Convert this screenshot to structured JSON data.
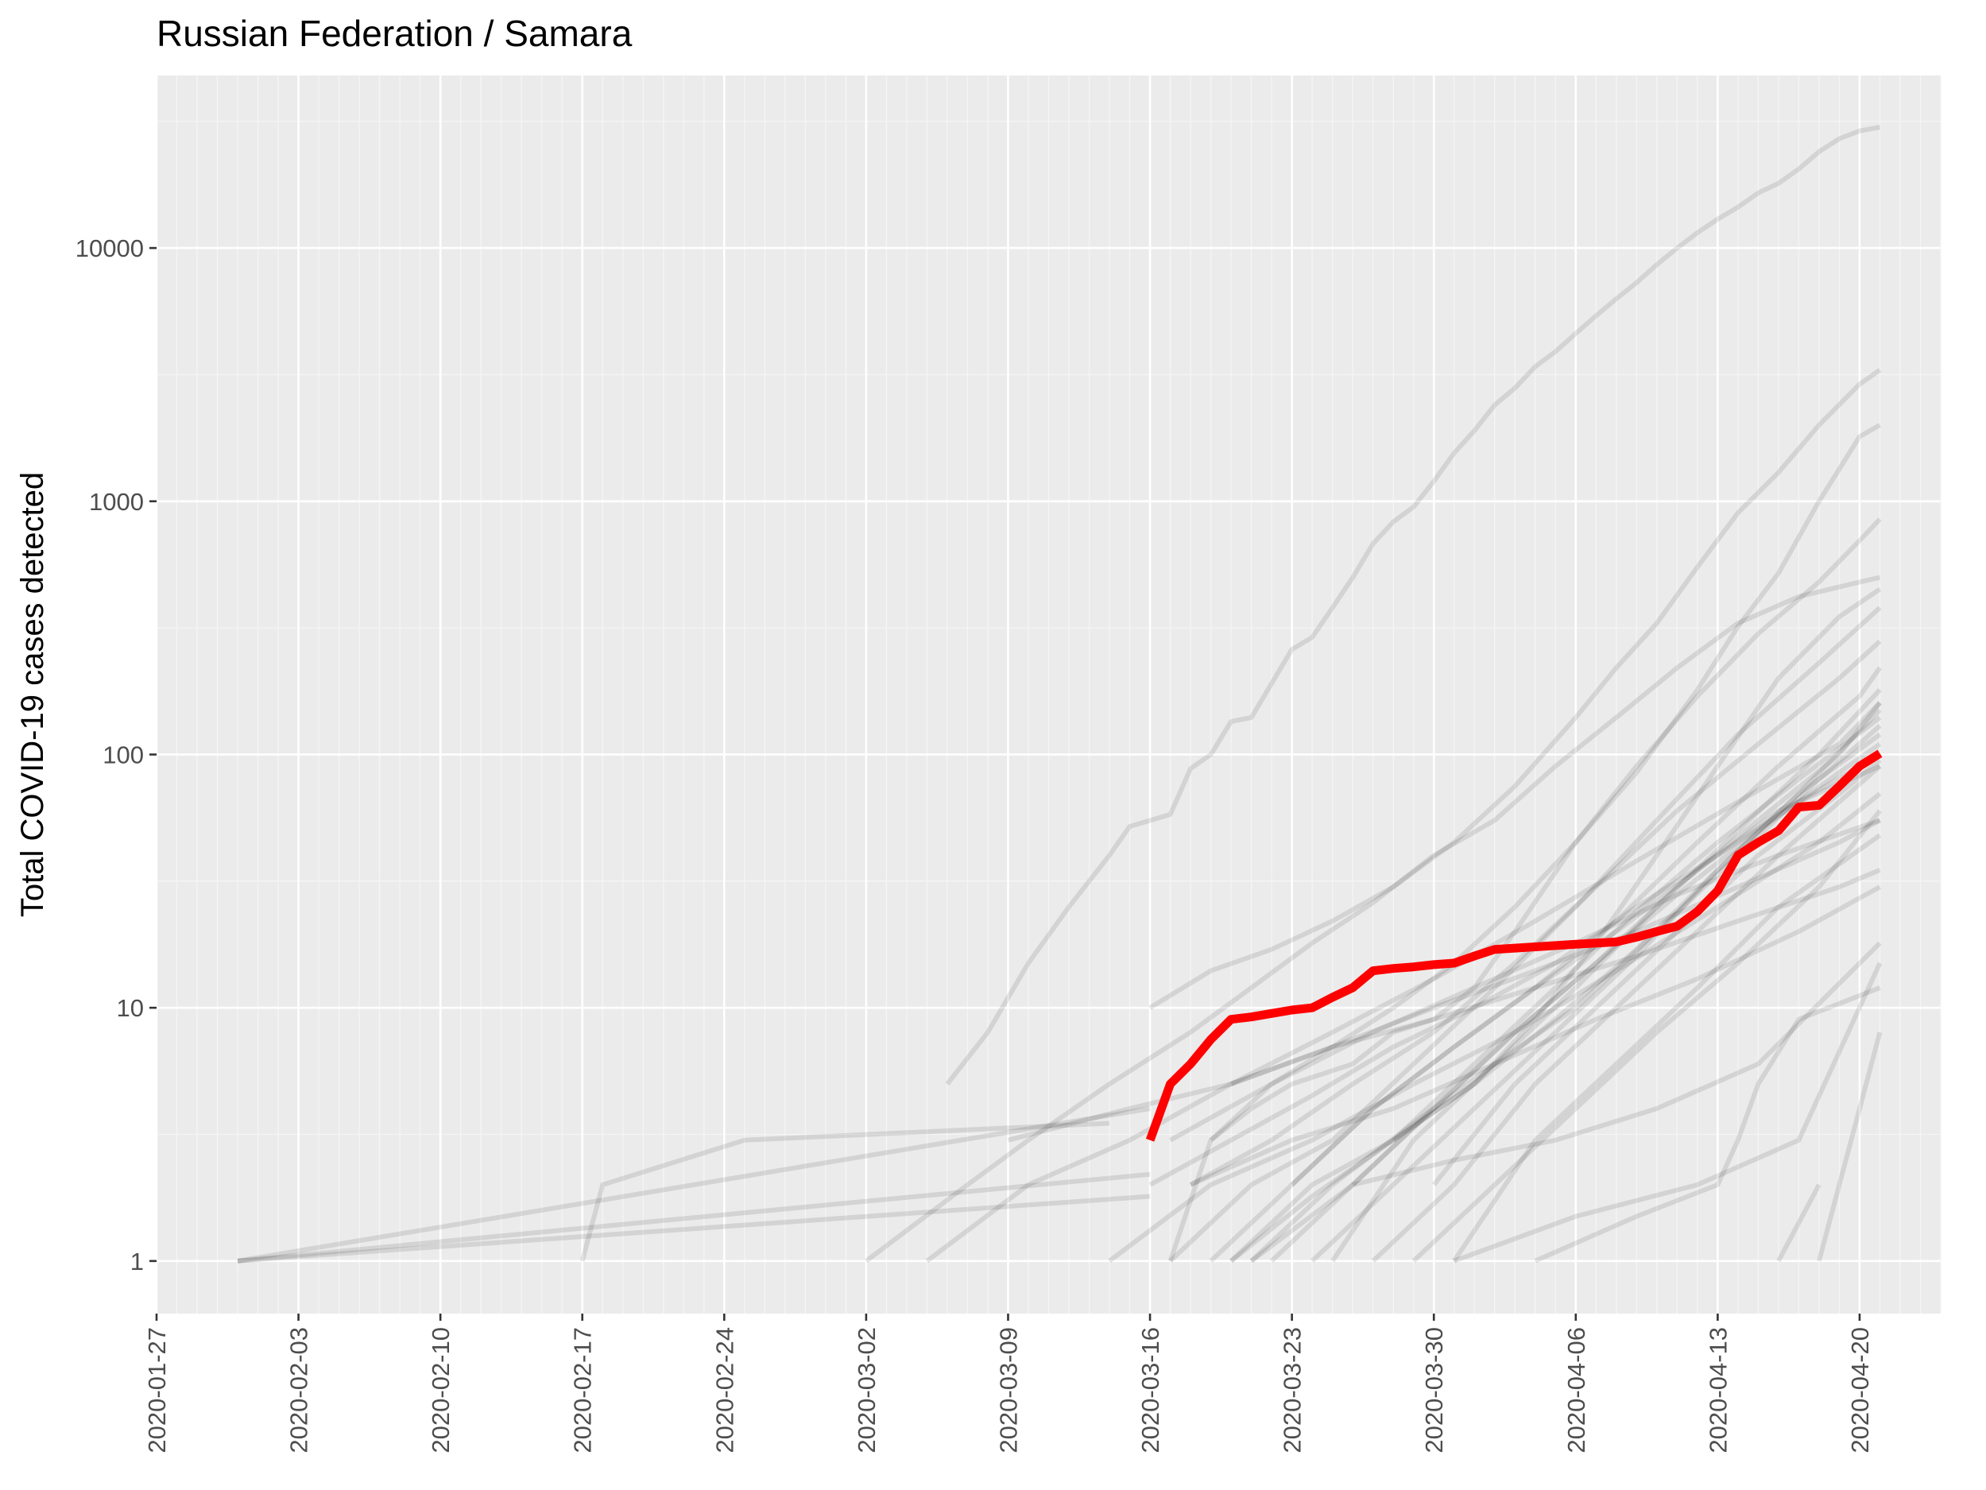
{
  "chart_data": {
    "type": "line",
    "title": "Russian Federation / Samara",
    "xlabel": "",
    "ylabel": "Total COVID-19 cases detected",
    "y_scale": "log10",
    "ylim": [
      0.62,
      48000
    ],
    "xlim": [
      "2020-01-27",
      "2020-04-24"
    ],
    "x_ticks": [
      "2020-01-27",
      "2020-02-03",
      "2020-02-10",
      "2020-02-17",
      "2020-02-24",
      "2020-03-02",
      "2020-03-09",
      "2020-03-16",
      "2020-03-23",
      "2020-03-30",
      "2020-04-06",
      "2020-04-13",
      "2020-04-20"
    ],
    "y_ticks": [
      {
        "value": 1,
        "label": "1"
      },
      {
        "value": 10,
        "label": "10"
      },
      {
        "value": 100,
        "label": "100"
      },
      {
        "value": 1000,
        "label": "1000"
      },
      {
        "value": 10000,
        "label": "10000"
      }
    ],
    "grid": true,
    "legend": "none",
    "colors": {
      "panel_background": "#ebebeb",
      "grid_major": "#ffffff",
      "grid_minor": "#f5f5f5",
      "background_series": "#000000",
      "highlight_series": "#ff0000",
      "tick_label": "#4d4d4d"
    },
    "highlight_series": {
      "x": [
        "2020-03-16",
        "2020-03-17",
        "2020-03-18",
        "2020-03-19",
        "2020-03-20",
        "2020-03-21",
        "2020-03-22",
        "2020-03-23",
        "2020-03-24",
        "2020-03-25",
        "2020-03-26",
        "2020-03-27",
        "2020-03-28",
        "2020-03-29",
        "2020-03-30",
        "2020-03-31",
        "2020-04-01",
        "2020-04-02",
        "2020-04-03",
        "2020-04-04",
        "2020-04-05",
        "2020-04-06",
        "2020-04-07",
        "2020-04-08",
        "2020-04-09",
        "2020-04-10",
        "2020-04-11",
        "2020-04-12",
        "2020-04-13",
        "2020-04-14",
        "2020-04-15",
        "2020-04-16",
        "2020-04-17",
        "2020-04-18",
        "2020-04-19",
        "2020-04-20",
        "2020-04-21"
      ],
      "y": [
        3,
        5,
        6,
        7.5,
        9,
        9.2,
        9.5,
        9.8,
        10,
        11,
        12,
        14,
        14.3,
        14.5,
        14.8,
        15,
        16,
        17,
        17.2,
        17.4,
        17.6,
        17.8,
        18,
        18.2,
        19,
        20,
        21,
        24,
        29,
        40,
        45,
        50,
        62,
        63,
        75,
        90,
        101
      ]
    },
    "background_series": [
      {
        "x": [
          "2020-01-31",
          "2020-03-16"
        ],
        "y": [
          1,
          4
        ]
      },
      {
        "x": [
          "2020-01-31",
          "2020-03-16"
        ],
        "y": [
          1,
          2.2
        ]
      },
      {
        "x": [
          "2020-01-31",
          "2020-03-16"
        ],
        "y": [
          1,
          1.8
        ]
      },
      {
        "x": [
          "2020-02-17",
          "2020-02-18",
          "2020-02-25",
          "2020-03-14"
        ],
        "y": [
          1,
          2,
          3,
          3.5
        ]
      },
      {
        "x": [
          "2020-03-06",
          "2020-03-08",
          "2020-03-10",
          "2020-03-12",
          "2020-03-14",
          "2020-03-15",
          "2020-03-17",
          "2020-03-18",
          "2020-03-19",
          "2020-03-20",
          "2020-03-21",
          "2020-03-23",
          "2020-03-24",
          "2020-03-25",
          "2020-03-26",
          "2020-03-27",
          "2020-03-28",
          "2020-03-29",
          "2020-03-30",
          "2020-03-31",
          "2020-04-01",
          "2020-04-02",
          "2020-04-03",
          "2020-04-04",
          "2020-04-05",
          "2020-04-06",
          "2020-04-07",
          "2020-04-08",
          "2020-04-09",
          "2020-04-10",
          "2020-04-11",
          "2020-04-12",
          "2020-04-13",
          "2020-04-14",
          "2020-04-15",
          "2020-04-16",
          "2020-04-17",
          "2020-04-18",
          "2020-04-19",
          "2020-04-20",
          "2020-04-21"
        ],
        "y": [
          5,
          8,
          15,
          25,
          40,
          52,
          58,
          88,
          100,
          135,
          140,
          260,
          290,
          380,
          500,
          680,
          830,
          950,
          1200,
          1550,
          1900,
          2400,
          2800,
          3400,
          3900,
          4600,
          5400,
          6300,
          7300,
          8600,
          10000,
          11500,
          13000,
          14500,
          16500,
          18000,
          20500,
          24000,
          27000,
          29000,
          30000
        ]
      },
      {
        "x": [
          "2020-03-16",
          "2020-03-19",
          "2020-03-22",
          "2020-03-25",
          "2020-03-28",
          "2020-03-31",
          "2020-04-03",
          "2020-04-06",
          "2020-04-08",
          "2020-04-10",
          "2020-04-12",
          "2020-04-14",
          "2020-04-16",
          "2020-04-18",
          "2020-04-20",
          "2020-04-21"
        ],
        "y": [
          10,
          14,
          17,
          22,
          30,
          45,
          75,
          140,
          220,
          330,
          550,
          900,
          1300,
          2000,
          2900,
          3300
        ]
      },
      {
        "x": [
          "2020-03-17",
          "2020-03-19",
          "2020-03-21",
          "2020-03-23",
          "2020-03-26",
          "2020-03-28",
          "2020-03-30",
          "2020-04-01",
          "2020-04-03",
          "2020-04-06",
          "2020-04-09",
          "2020-04-12",
          "2020-04-14",
          "2020-04-16",
          "2020-04-18",
          "2020-04-20",
          "2020-04-21"
        ],
        "y": [
          1,
          3,
          4,
          5,
          6,
          8,
          9,
          12,
          20,
          45,
          85,
          180,
          320,
          520,
          1000,
          1800,
          2000
        ]
      },
      {
        "x": [
          "2020-03-19",
          "2020-03-22",
          "2020-03-25",
          "2020-03-28",
          "2020-03-31",
          "2020-04-03",
          "2020-04-06",
          "2020-04-09",
          "2020-04-12",
          "2020-04-15",
          "2020-04-18",
          "2020-04-20",
          "2020-04-21"
        ],
        "y": [
          3,
          5,
          7,
          10,
          15,
          25,
          45,
          90,
          170,
          300,
          480,
          700,
          850
        ]
      },
      {
        "x": [
          "2020-03-02",
          "2020-03-07",
          "2020-03-10",
          "2020-03-14",
          "2020-03-18",
          "2020-03-21",
          "2020-03-24",
          "2020-03-27",
          "2020-03-30",
          "2020-04-02",
          "2020-04-05",
          "2020-04-08",
          "2020-04-11",
          "2020-04-14",
          "2020-04-17",
          "2020-04-20",
          "2020-04-21"
        ],
        "y": [
          1,
          2,
          3,
          5,
          8,
          12,
          18,
          26,
          40,
          55,
          90,
          140,
          220,
          330,
          420,
          480,
          500
        ]
      },
      {
        "x": [
          "2020-03-20",
          "2020-03-24",
          "2020-03-28",
          "2020-04-01",
          "2020-04-04",
          "2020-04-07",
          "2020-04-10",
          "2020-04-13",
          "2020-04-16",
          "2020-04-19",
          "2020-04-21"
        ],
        "y": [
          1,
          2,
          3,
          5,
          9,
          18,
          40,
          90,
          200,
          350,
          450
        ]
      },
      {
        "x": [
          "2020-03-17",
          "2020-03-21",
          "2020-03-25",
          "2020-03-29",
          "2020-04-02",
          "2020-04-06",
          "2020-04-10",
          "2020-04-14",
          "2020-04-18",
          "2020-04-21"
        ],
        "y": [
          1,
          2,
          3,
          6,
          12,
          25,
          55,
          120,
          230,
          380
        ]
      },
      {
        "x": [
          "2020-03-18",
          "2020-03-22",
          "2020-03-26",
          "2020-03-30",
          "2020-04-03",
          "2020-04-07",
          "2020-04-11",
          "2020-04-15",
          "2020-04-19",
          "2020-04-21"
        ],
        "y": [
          2,
          3,
          5,
          8,
          15,
          30,
          60,
          110,
          200,
          280
        ]
      },
      {
        "x": [
          "2020-03-19",
          "2020-03-23",
          "2020-03-27",
          "2020-03-31",
          "2020-04-04",
          "2020-04-08",
          "2020-04-12",
          "2020-04-16",
          "2020-04-20",
          "2020-04-21"
        ],
        "y": [
          1,
          2,
          4,
          7,
          12,
          22,
          45,
          90,
          170,
          220
        ]
      },
      {
        "x": [
          "2020-03-20",
          "2020-03-24",
          "2020-03-28",
          "2020-04-01",
          "2020-04-05",
          "2020-04-09",
          "2020-04-13",
          "2020-04-17",
          "2020-04-21"
        ],
        "y": [
          1,
          1.8,
          3,
          5,
          9,
          17,
          35,
          70,
          150
        ]
      },
      {
        "x": [
          "2020-03-21",
          "2020-03-25",
          "2020-03-29",
          "2020-04-02",
          "2020-04-06",
          "2020-04-10",
          "2020-04-14",
          "2020-04-18",
          "2020-04-21"
        ],
        "y": [
          1,
          2,
          3.5,
          6,
          10,
          20,
          40,
          80,
          130
        ]
      },
      {
        "x": [
          "2020-03-22",
          "2020-03-26",
          "2020-03-30",
          "2020-04-03",
          "2020-04-07",
          "2020-04-11",
          "2020-04-15",
          "2020-04-19",
          "2020-04-21"
        ],
        "y": [
          1,
          2,
          4,
          8,
          15,
          30,
          55,
          100,
          160
        ]
      },
      {
        "x": [
          "2020-03-24",
          "2020-03-28",
          "2020-04-01",
          "2020-04-05",
          "2020-04-09",
          "2020-04-13",
          "2020-04-17",
          "2020-04-21"
        ],
        "y": [
          1,
          2,
          4,
          8,
          16,
          35,
          70,
          120
        ]
      },
      {
        "x": [
          "2020-03-25",
          "2020-03-29",
          "2020-04-02",
          "2020-04-06",
          "2020-04-10",
          "2020-04-14",
          "2020-04-18",
          "2020-04-21"
        ],
        "y": [
          1,
          3,
          6,
          12,
          25,
          50,
          100,
          180
        ]
      },
      {
        "x": [
          "2020-03-27",
          "2020-03-31",
          "2020-04-04",
          "2020-04-08",
          "2020-04-12",
          "2020-04-16",
          "2020-04-21"
        ],
        "y": [
          1,
          2,
          5,
          10,
          20,
          40,
          90
        ]
      },
      {
        "x": [
          "2020-03-29",
          "2020-04-02",
          "2020-04-06",
          "2020-04-10",
          "2020-04-14",
          "2020-04-18",
          "2020-04-21"
        ],
        "y": [
          1,
          2,
          4,
          8,
          15,
          30,
          60
        ]
      },
      {
        "x": [
          "2020-03-31",
          "2020-04-04",
          "2020-04-08",
          "2020-04-12",
          "2020-04-16",
          "2020-04-21"
        ],
        "y": [
          1,
          3,
          6,
          12,
          25,
          48
        ]
      },
      {
        "x": [
          "2020-03-16",
          "2020-03-20",
          "2020-03-24",
          "2020-03-28",
          "2020-04-01",
          "2020-04-05",
          "2020-04-09",
          "2020-04-13",
          "2020-04-17",
          "2020-04-21"
        ],
        "y": [
          2,
          3,
          4.5,
          7,
          10,
          15,
          25,
          40,
          65,
          100
        ]
      },
      {
        "x": [
          "2020-03-18",
          "2020-03-23",
          "2020-03-28",
          "2020-04-02",
          "2020-04-07",
          "2020-04-12",
          "2020-04-17",
          "2020-04-21"
        ],
        "y": [
          2,
          3,
          4,
          6,
          9,
          13,
          20,
          30
        ]
      },
      {
        "x": [
          "2020-03-17",
          "2020-03-22",
          "2020-03-27",
          "2020-04-01",
          "2020-04-06",
          "2020-04-11",
          "2020-04-16",
          "2020-04-21"
        ],
        "y": [
          3,
          5,
          8,
          12,
          18,
          28,
          40,
          55
        ]
      },
      {
        "x": [
          "2020-03-23",
          "2020-03-27",
          "2020-03-31",
          "2020-04-04",
          "2020-04-08",
          "2020-04-12",
          "2020-04-16",
          "2020-04-21"
        ],
        "y": [
          2,
          4,
          7,
          12,
          20,
          35,
          60,
          90
        ]
      },
      {
        "x": [
          "2020-03-26",
          "2020-03-30",
          "2020-04-03",
          "2020-04-07",
          "2020-04-11",
          "2020-04-15",
          "2020-04-19",
          "2020-04-21"
        ],
        "y": [
          2,
          4,
          8,
          15,
          28,
          50,
          85,
          110
        ]
      },
      {
        "x": [
          "2020-03-28",
          "2020-04-01",
          "2020-04-05",
          "2020-04-09",
          "2020-04-13",
          "2020-04-17",
          "2020-04-21"
        ],
        "y": [
          3,
          6,
          12,
          24,
          45,
          80,
          140
        ]
      },
      {
        "x": [
          "2020-03-30",
          "2020-04-03",
          "2020-04-07",
          "2020-04-11",
          "2020-04-15",
          "2020-04-19",
          "2020-04-21"
        ],
        "y": [
          2,
          5,
          10,
          20,
          40,
          70,
          95
        ]
      },
      {
        "x": [
          "2020-03-14",
          "2020-03-19",
          "2020-03-24",
          "2020-03-29",
          "2020-04-03",
          "2020-04-08",
          "2020-04-13",
          "2020-04-18",
          "2020-04-21"
        ],
        "y": [
          1,
          2,
          3,
          5,
          8,
          14,
          25,
          45,
          70
        ]
      },
      {
        "x": [
          "2020-03-20",
          "2020-03-25",
          "2020-03-30",
          "2020-04-04",
          "2020-04-09",
          "2020-04-14",
          "2020-04-19",
          "2020-04-21"
        ],
        "y": [
          5,
          7,
          9,
          12,
          16,
          22,
          30,
          35
        ]
      },
      {
        "x": [
          "2020-03-21",
          "2020-03-26",
          "2020-03-31",
          "2020-04-05",
          "2020-04-10",
          "2020-04-15",
          "2020-04-21"
        ],
        "y": [
          1,
          2,
          2.5,
          3,
          4,
          6,
          18
        ]
      },
      {
        "x": [
          "2020-03-31",
          "2020-04-06",
          "2020-04-12",
          "2020-04-17",
          "2020-04-21"
        ],
        "y": [
          1,
          1.5,
          2,
          3,
          15
        ]
      },
      {
        "x": [
          "2020-04-04",
          "2020-04-09",
          "2020-04-13",
          "2020-04-14",
          "2020-04-15",
          "2020-04-17",
          "2020-04-21"
        ],
        "y": [
          1,
          1.5,
          2,
          3,
          5,
          9,
          12
        ]
      },
      {
        "x": [
          "2020-04-16",
          "2020-04-18"
        ],
        "y": [
          1,
          2
        ]
      },
      {
        "x": [
          "2020-04-18",
          "2020-04-19",
          "2020-04-20",
          "2020-04-21"
        ],
        "y": [
          1,
          2,
          4,
          8
        ]
      },
      {
        "x": [
          "2020-03-09",
          "2020-03-15",
          "2020-03-20",
          "2020-03-25",
          "2020-03-30",
          "2020-04-04",
          "2020-04-09",
          "2020-04-14",
          "2020-04-19",
          "2020-04-21"
        ],
        "y": [
          3,
          4,
          5,
          7,
          10,
          14,
          20,
          30,
          45,
          55
        ]
      },
      {
        "x": [
          "2020-03-05",
          "2020-03-10",
          "2020-03-15",
          "2020-03-20",
          "2020-03-25",
          "2020-03-30",
          "2020-04-04",
          "2020-04-09",
          "2020-04-14",
          "2020-04-19",
          "2020-04-21"
        ],
        "y": [
          1,
          2,
          3,
          5,
          8,
          13,
          22,
          38,
          65,
          110,
          160
        ]
      }
    ]
  }
}
